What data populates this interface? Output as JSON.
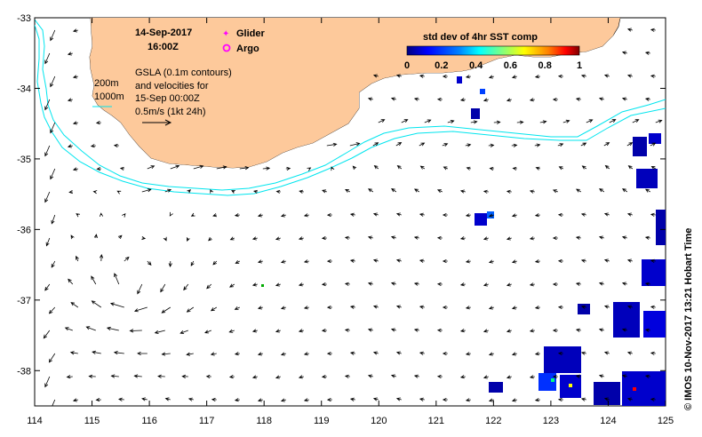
{
  "header": {
    "date": "14-Sep-2017",
    "time": "16:00Z"
  },
  "legend": {
    "glider_label": "Glider",
    "argo_label": "Argo",
    "glider_color": "#ff00ff",
    "argo_color": "#ff00ff"
  },
  "notes": {
    "line1": "GSLA (0.1m contours)",
    "line2": "and velocities for",
    "line3": "15-Sep 00:00Z",
    "line4": "0.5m/s (1kt 24h)"
  },
  "isobaths": {
    "label_200": "200m",
    "label_1000": "1000m",
    "color": "#00e5ee"
  },
  "colorbar": {
    "title": "std dev of 4hr SST comp",
    "ticks": [
      "0",
      "0.2",
      "0.4",
      "0.6",
      "0.8",
      "1"
    ],
    "colors": [
      "#000080",
      "#0000ff",
      "#0080ff",
      "#00ffff",
      "#80ff80",
      "#ffff00",
      "#ff8000",
      "#ff0000",
      "#800000"
    ]
  },
  "axes": {
    "x_ticks": [
      "114",
      "115",
      "116",
      "117",
      "118",
      "119",
      "120",
      "121",
      "122",
      "123",
      "124",
      "125"
    ],
    "y_ticks": [
      "-33",
      "-34",
      "-35",
      "-36",
      "-37",
      "-38"
    ],
    "x_range": [
      114,
      125
    ],
    "y_range": [
      -38.5,
      -33
    ]
  },
  "credit": "© IMOS 10-Nov-2017 13:21 Hobart Time",
  "colors": {
    "land": "#fdc99b",
    "current": "#000000"
  }
}
